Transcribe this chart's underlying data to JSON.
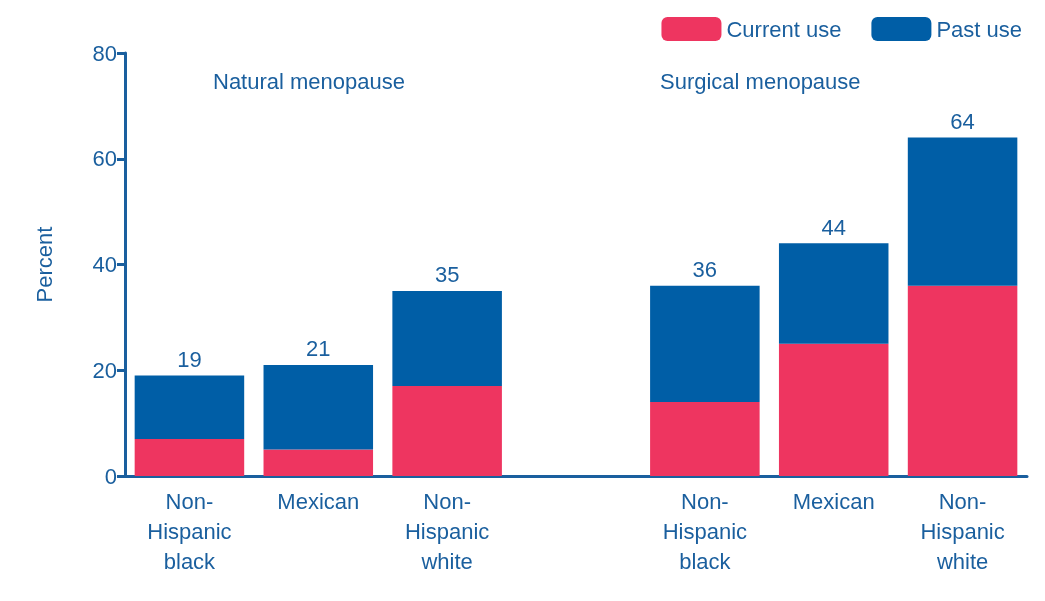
{
  "chart_data": {
    "type": "bar",
    "stacked": true,
    "ylabel": "Percent",
    "categories": [
      "Non-\nHispanic\nblack",
      "Mexican",
      "Non-\nHispanic\nwhite",
      null,
      "Non-\nHispanic\nblack",
      "Mexican",
      "Non-\nHispanic\nwhite"
    ],
    "series": [
      {
        "name": "Current use",
        "color": "#ee3560",
        "values": [
          7,
          5,
          17,
          null,
          14,
          25,
          36
        ]
      },
      {
        "name": "Past use",
        "color": "#005ea6",
        "values": [
          12,
          16,
          18,
          null,
          22,
          19,
          28
        ]
      }
    ],
    "totals": [
      "19",
      "21",
      "35",
      null,
      "36",
      "44",
      "64"
    ],
    "annotations": [
      "Natural menopause",
      "Surgical menopause"
    ],
    "ylim": [
      0,
      80
    ],
    "yticks": [
      0,
      20,
      40,
      60,
      80
    ],
    "grid": false,
    "legend": "top right"
  }
}
